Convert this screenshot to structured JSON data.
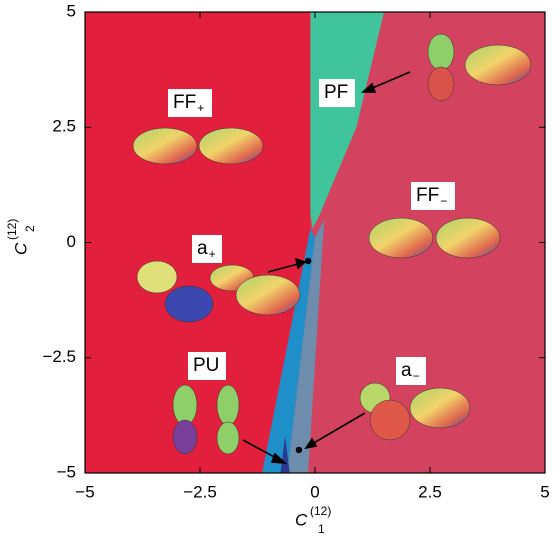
{
  "chart_data": {
    "type": "phase",
    "xlim": [
      -5,
      5
    ],
    "ylim": [
      -5,
      5
    ],
    "xticks": [
      {
        "value": -5,
        "label": "−5"
      },
      {
        "value": -2.5,
        "label": "−2.5"
      },
      0,
      2.5,
      5
    ],
    "yticks": [
      {
        "value": -5,
        "label": "−5"
      },
      {
        "value": -2.5,
        "label": "−2.5"
      },
      0,
      2.5,
      5
    ],
    "x_label": {
      "base": "C",
      "sup": "(12)",
      "sub": "1"
    },
    "y_label": {
      "base": "C",
      "sup": "(12)",
      "sub": "2"
    },
    "background_color": "#d3425e",
    "regions": [
      {
        "color": "#e21f3c",
        "x": [
          -5,
          -0.1,
          -0.1,
          -1.15,
          -5
        ],
        "y": [
          5,
          5,
          0.3,
          -5,
          -5
        ]
      },
      {
        "color": "#1f8fc9",
        "x": [
          -0.1,
          0,
          -0.6,
          -1.15
        ],
        "y": [
          0.3,
          0.1,
          -5,
          -5
        ]
      },
      {
        "color": "#6e8cab",
        "x": [
          0,
          0.2,
          -0.15,
          -0.6
        ],
        "y": [
          0.1,
          0.5,
          -5,
          -5
        ]
      },
      {
        "color": "#40c49c",
        "x": [
          -0.1,
          1.5,
          0.9,
          0.1,
          -0.05,
          -0.1
        ],
        "y": [
          5,
          5,
          2.5,
          0.6,
          0.3,
          0.6
        ]
      },
      {
        "color": "#2b3a8f",
        "x": [
          -0.75,
          -0.65,
          -0.55
        ],
        "y": [
          -5,
          -4.2,
          -5
        ]
      }
    ],
    "labels": [
      {
        "base": "FF",
        "sub": "+"
      },
      {
        "base": "PF"
      },
      {
        "base": "FF",
        "sub": "−"
      },
      {
        "base": "a",
        "sub": "+"
      },
      {
        "base": "PU"
      },
      {
        "base": "a",
        "sub": "−"
      }
    ],
    "points": {
      "x": [
        -0.15,
        -0.35
      ],
      "y": [
        -0.4,
        -4.5
      ]
    }
  }
}
